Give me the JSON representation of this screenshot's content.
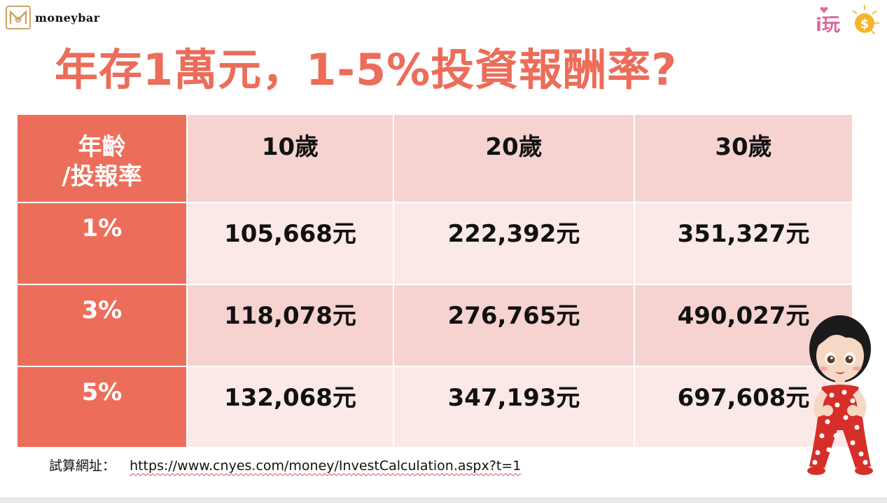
{
  "logo": {
    "text": "moneybar"
  },
  "brand_right": {
    "text": "i玩",
    "coin_symbol": "$"
  },
  "title": "年存1萬元，1-5%投資報酬率?",
  "table": {
    "corner_line1": "年齡",
    "corner_line2": "/投報率",
    "columns": [
      "10歲",
      "20歲",
      "30歲"
    ],
    "rows": [
      {
        "rate": "1%",
        "values": [
          "105,668元",
          "222,392元",
          "351,327元"
        ]
      },
      {
        "rate": "3%",
        "values": [
          "118,078元",
          "276,765元",
          "490,027元"
        ]
      },
      {
        "rate": "5%",
        "values": [
          "132,068元",
          "347,193元",
          "697,608元"
        ]
      }
    ]
  },
  "footer": {
    "label": "試算網址：",
    "url": "https://www.cnyes.com/money/InvestCalculation.aspx?t=1"
  },
  "colors": {
    "accent": "#ec6e5a",
    "title": "#eb6d5a",
    "row_light": "#fbe9e7",
    "row_dark": "#f6d3d0"
  }
}
